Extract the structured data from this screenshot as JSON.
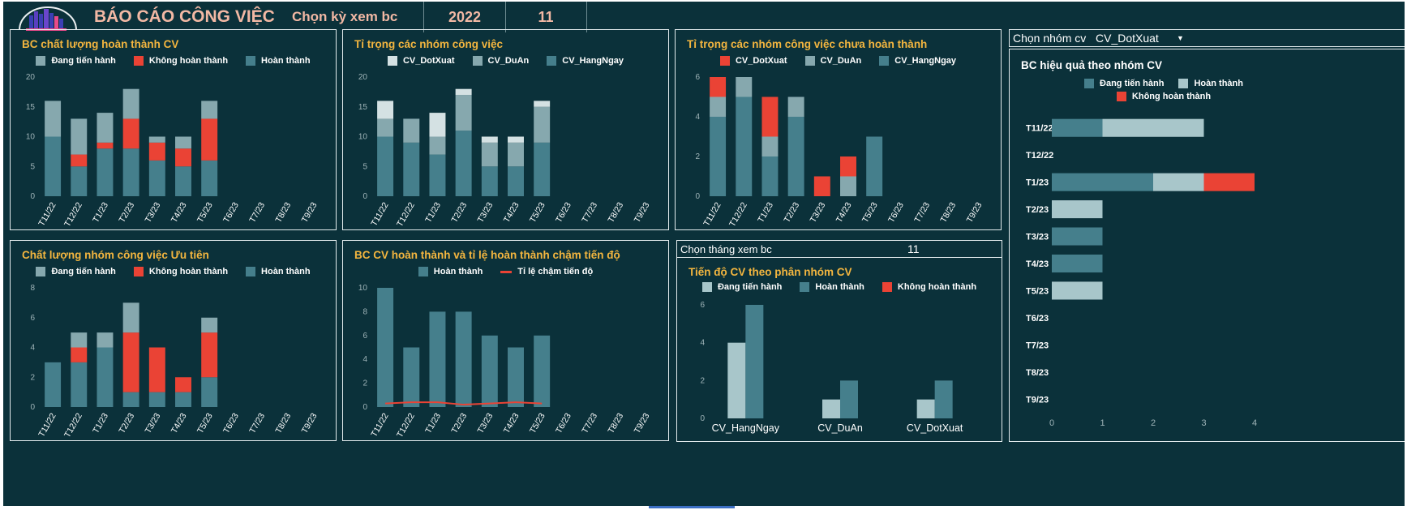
{
  "header": {
    "title": "BÁO CÁO CÔNG VIỆC",
    "period_label": "Chọn kỳ xem bc",
    "year": "2022",
    "month": "11"
  },
  "colors": {
    "background": "#0b313a",
    "in_progress": "#86a8ae",
    "not_completed": "#ea4335",
    "completed": "#457f8c",
    "cv_dotxuat_light": "#d4e1e3",
    "cv_duan": "#86a8ae",
    "cv_hangngay": "#457f8c",
    "title_text": "#f4b63f",
    "header_text": "#f2b8a4"
  },
  "month_select": {
    "label": "Chọn tháng xem bc",
    "value": "11"
  },
  "group_select": {
    "label": "Chọn nhóm cv",
    "value": "CV_DotXuat"
  },
  "chart_data": [
    {
      "id": "c1",
      "type": "bar",
      "stacked": true,
      "title": "BC chất lượng hoàn thành CV",
      "categories": [
        "T11/22",
        "T12/22",
        "T1/23",
        "T2/23",
        "T3/23",
        "T4/23",
        "T5/23",
        "T6/23",
        "T7/23",
        "T8/23",
        "T9/23"
      ],
      "ylim": [
        0,
        20
      ],
      "yticks": [
        "0",
        "5",
        "10",
        "15",
        "20"
      ],
      "series": [
        {
          "name": "Đang tiến hành",
          "color": "#86a8ae",
          "values": [
            6,
            6,
            5,
            5,
            1,
            2,
            3,
            0,
            0,
            0,
            0
          ]
        },
        {
          "name": "Không hoàn thành",
          "color": "#ea4335",
          "values": [
            0,
            2,
            1,
            5,
            3,
            3,
            7,
            0,
            0,
            0,
            0
          ]
        },
        {
          "name": "Hoàn thành",
          "color": "#457f8c",
          "values": [
            10,
            5,
            8,
            8,
            6,
            5,
            6,
            0,
            0,
            0,
            0
          ]
        }
      ],
      "stack_order": [
        2,
        1,
        0
      ],
      "legend_order": [
        0,
        1,
        2
      ]
    },
    {
      "id": "c2",
      "type": "bar",
      "stacked": true,
      "title": "Tỉ trọng các nhóm công việc",
      "categories": [
        "T11/22",
        "T12/22",
        "T1/23",
        "T2/23",
        "T3/23",
        "T4/23",
        "T5/23",
        "T6/23",
        "T7/23",
        "T8/23",
        "T9/23"
      ],
      "ylim": [
        0,
        20
      ],
      "yticks": [
        "0",
        "5",
        "10",
        "15",
        "20"
      ],
      "series": [
        {
          "name": "CV_DotXuat",
          "color": "#d4e1e3",
          "values": [
            3,
            0,
            4,
            1,
            1,
            1,
            1,
            0,
            0,
            0,
            0
          ]
        },
        {
          "name": "CV_DuAn",
          "color": "#86a8ae",
          "values": [
            3,
            4,
            3,
            6,
            4,
            4,
            6,
            0,
            0,
            0,
            0
          ]
        },
        {
          "name": "CV_HangNgay",
          "color": "#457f8c",
          "values": [
            10,
            9,
            7,
            11,
            5,
            5,
            9,
            0,
            0,
            0,
            0
          ]
        }
      ],
      "stack_order": [
        2,
        1,
        0
      ],
      "legend_order": [
        0,
        1,
        2
      ]
    },
    {
      "id": "c3",
      "type": "bar",
      "stacked": true,
      "title": "Tỉ trọng các nhóm công việc chưa hoàn thành",
      "categories": [
        "T11/22",
        "T12/22",
        "T1/23",
        "T2/23",
        "T3/23",
        "T4/23",
        "T5/23",
        "T6/23",
        "T7/23",
        "T8/23",
        "T9/23"
      ],
      "ylim": [
        0,
        6
      ],
      "yticks": [
        "0",
        "2",
        "4",
        "6"
      ],
      "series": [
        {
          "name": "CV_DotXuat",
          "color": "#ea4335",
          "values": [
            1,
            0,
            2,
            0,
            1,
            1,
            0,
            0,
            0,
            0,
            0
          ]
        },
        {
          "name": "CV_DuAn",
          "color": "#86a8ae",
          "values": [
            1,
            1,
            1,
            1,
            0,
            1,
            0,
            0,
            0,
            0,
            0
          ]
        },
        {
          "name": "CV_HangNgay",
          "color": "#457f8c",
          "values": [
            4,
            5,
            2,
            4,
            0,
            0,
            3,
            0,
            0,
            0,
            0
          ]
        }
      ],
      "stack_order": [
        2,
        1,
        0
      ],
      "legend_order": [
        0,
        1,
        2
      ]
    },
    {
      "id": "c4",
      "type": "bar",
      "stacked": true,
      "title": "Chất lượng nhóm công việc Ưu tiên",
      "categories": [
        "T11/22",
        "T12/22",
        "T1/23",
        "T2/23",
        "T3/23",
        "T4/23",
        "T5/23",
        "T6/23",
        "T7/23",
        "T8/23",
        "T9/23"
      ],
      "ylim": [
        0,
        8
      ],
      "yticks": [
        "0",
        "2",
        "4",
        "6",
        "8"
      ],
      "series": [
        {
          "name": "Đang tiến hành",
          "color": "#86a8ae",
          "values": [
            0,
            1,
            1,
            2,
            0,
            0,
            1,
            0,
            0,
            0,
            0
          ]
        },
        {
          "name": "Không hoàn thành",
          "color": "#ea4335",
          "values": [
            0,
            1,
            0,
            4,
            3,
            1,
            3,
            0,
            0,
            0,
            0
          ]
        },
        {
          "name": "Hoàn thành",
          "color": "#457f8c",
          "values": [
            3,
            3,
            4,
            1,
            1,
            1,
            2,
            0,
            0,
            0,
            0
          ]
        }
      ],
      "stack_order": [
        2,
        1,
        0
      ],
      "legend_order": [
        0,
        1,
        2
      ]
    },
    {
      "id": "c5",
      "type": "bar+line",
      "title": "BC CV hoàn thành và tỉ lệ hoàn thành chậm tiến độ",
      "categories": [
        "T11/22",
        "T12/22",
        "T1/23",
        "T2/23",
        "T3/23",
        "T4/23",
        "T5/23",
        "T6/23",
        "T7/23",
        "T8/23",
        "T9/23"
      ],
      "ylim": [
        0,
        10
      ],
      "yticks": [
        "0",
        "2",
        "4",
        "6",
        "8",
        "10"
      ],
      "bar_series": {
        "name": "Hoàn thành",
        "color": "#457f8c",
        "values": [
          10,
          5,
          8,
          8,
          6,
          5,
          6,
          0,
          0,
          0,
          0
        ]
      },
      "line_series": {
        "name": "Tỉ lệ chậm tiến độ",
        "color": "#ea4335",
        "values": [
          0.3,
          0.4,
          0.4,
          0.2,
          0.3,
          0.4,
          0.3
        ]
      }
    },
    {
      "id": "c6",
      "type": "bar",
      "grouped": true,
      "title": "Tiến độ CV theo phân nhóm CV",
      "categories": [
        "CV_HangNgay",
        "CV_DuAn",
        "CV_DotXuat"
      ],
      "ylim": [
        0,
        6
      ],
      "yticks": [
        "0",
        "2",
        "4",
        "6"
      ],
      "series": [
        {
          "name": "Đang tiến hành",
          "color": "#a8c6ca",
          "values": [
            4,
            1,
            1
          ]
        },
        {
          "name": "Hoàn thành",
          "color": "#457f8c",
          "values": [
            6,
            2,
            2
          ]
        },
        {
          "name": "Không hoàn thành",
          "color": "#ea4335",
          "values": [
            0,
            0,
            0
          ]
        }
      ]
    },
    {
      "id": "c7",
      "type": "bar",
      "horizontal": true,
      "stacked": true,
      "title": "BC hiệu quả theo nhóm CV",
      "categories": [
        "T11/22",
        "T12/22",
        "T1/23",
        "T2/23",
        "T3/23",
        "T4/23",
        "T5/23",
        "T6/23",
        "T7/23",
        "T8/23",
        "T9/23"
      ],
      "xlim": [
        0,
        4
      ],
      "xticks": [
        "0",
        "1",
        "2",
        "3",
        "4"
      ],
      "series": [
        {
          "name": "Đang tiến hành",
          "color": "#457f8c",
          "values": [
            1,
            0,
            2,
            0,
            1,
            1,
            0,
            0,
            0,
            0,
            0
          ]
        },
        {
          "name": "Hoàn thành",
          "color": "#a8c6ca",
          "values": [
            2,
            0,
            1,
            1,
            0,
            0,
            1,
            0,
            0,
            0,
            0
          ]
        },
        {
          "name": "Không hoàn thành",
          "color": "#ea4335",
          "values": [
            0,
            0,
            1,
            0,
            0,
            0,
            0,
            0,
            0,
            0,
            0
          ]
        }
      ]
    }
  ]
}
